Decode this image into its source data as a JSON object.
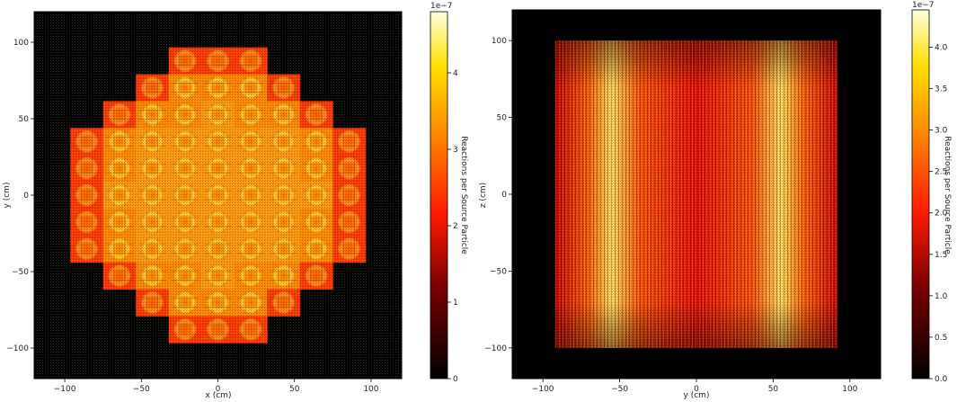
{
  "chart_data": [
    {
      "type": "heatmap",
      "description_of_shape": "radial core cross-section (checkerboard-like assembly pattern)",
      "xlabel": "x (cm)",
      "ylabel": "y (cm)",
      "xlim": [
        -120,
        120
      ],
      "ylim": [
        -120,
        120
      ],
      "xticks": [
        -100,
        -50,
        0,
        50,
        100
      ],
      "yticks": [
        -100,
        -50,
        0,
        50,
        100
      ],
      "colorbar": {
        "label": "Reactions per Source Particle",
        "multiplier": "1e−7",
        "range": [
          0,
          4.8
        ],
        "ticks": [
          0,
          1,
          2,
          3,
          4
        ],
        "colormap": "hot"
      }
    },
    {
      "type": "heatmap",
      "xlabel": "y (cm)",
      "ylabel": "z (cm)",
      "xlim": [
        -120,
        120
      ],
      "ylim": [
        -120,
        120
      ],
      "xticks": [
        -100,
        -50,
        0,
        50,
        100
      ],
      "yticks": [
        -100,
        -50,
        0,
        50,
        100
      ],
      "colorbar": {
        "label": "Reactions per Source Particle",
        "multiplier": "1e−7",
        "range": [
          0,
          4.45
        ],
        "ticks": [
          0.0,
          0.5,
          1.0,
          1.5,
          2.0,
          2.5,
          3.0,
          3.5,
          4.0
        ],
        "colormap": "hot"
      }
    }
  ],
  "colors": {
    "background": "#000000",
    "hot_low": "#0b0000",
    "hot_mid": "#ff2a00",
    "hot_high": "#ffff55"
  }
}
